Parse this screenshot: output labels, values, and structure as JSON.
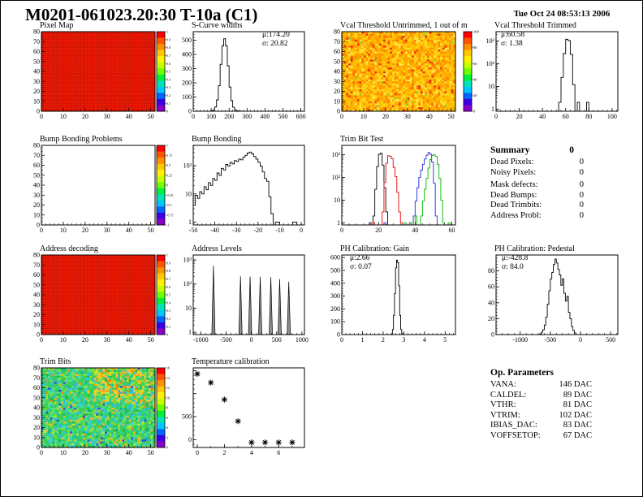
{
  "header": {
    "title": "M0201-061023.20:30 T-10a (C1)",
    "timestamp": "Tue Oct 24 08:53:13 2006"
  },
  "summary": {
    "title": "Summary",
    "total": "0",
    "rows": [
      {
        "label": "Dead Pixels:",
        "value": "0"
      },
      {
        "label": "Noisy Pixels:",
        "value": "0"
      },
      {
        "label": "Mask defects:",
        "value": "0"
      },
      {
        "label": "Dead Bumps:",
        "value": "0"
      },
      {
        "label": "Dead Trimbits:",
        "value": "0"
      },
      {
        "label": "Address Probl:",
        "value": "0"
      }
    ]
  },
  "op_parameters": {
    "title": "Op. Parameters",
    "rows": [
      {
        "label": "VANA:",
        "value": "146 DAC"
      },
      {
        "label": "CALDEL:",
        "value": "89 DAC"
      },
      {
        "label": "VTHR:",
        "value": "81 DAC"
      },
      {
        "label": "VTRIM:",
        "value": "102 DAC"
      },
      {
        "label": "IBIAS_DAC:",
        "value": "83 DAC"
      },
      {
        "label": "VOFFSETOP:",
        "value": "67 DAC"
      }
    ]
  },
  "colors": {
    "rainbow": [
      "#ff0000",
      "#ff5500",
      "#ff9100",
      "#ffc800",
      "#fff200",
      "#c8ff00",
      "#6eff00",
      "#00f23c",
      "#00e6b4",
      "#00c8ff",
      "#0064ff",
      "#3c00e6",
      "#8800cc"
    ],
    "map_red": "#f21905",
    "map_red_grid": "#a51404",
    "hist_line": "#000000"
  },
  "chart_data": [
    {
      "id": "pixel-map",
      "title": "Pixel Map",
      "type": "heatmap_uniform",
      "xlim": [
        0,
        52
      ],
      "ylim": [
        0,
        80
      ],
      "x_ticks": [
        0,
        10,
        20,
        30,
        40,
        50
      ],
      "y_ticks": [
        0,
        10,
        20,
        30,
        40,
        50,
        60,
        70,
        80
      ],
      "x_minor": 2,
      "y_minor": 2,
      "fill": "#f21905",
      "grid": "#a51404",
      "colorbar": {
        "x": 174,
        "labels": [
          "1",
          "0.9",
          "0.8",
          "0.7",
          "0.6",
          "0.5",
          "0.4",
          "0.3",
          "0.2",
          "0.1",
          "0"
        ],
        "fs": 4
      }
    },
    {
      "id": "s-curve-widths",
      "title": "S-Curve widths",
      "type": "hist",
      "xlim": [
        0,
        620
      ],
      "ylim": [
        0,
        560
      ],
      "x_ticks": [
        0,
        100,
        200,
        300,
        400,
        500,
        600
      ],
      "y_ticks": [
        0,
        100,
        200,
        300,
        400,
        500
      ],
      "x_minor": 20,
      "y_minor": 20,
      "x0": 80,
      "binw": 10,
      "counts": [
        0,
        1,
        3,
        10,
        30,
        80,
        180,
        330,
        460,
        510,
        460,
        320,
        170,
        75,
        28,
        10,
        4,
        2,
        1,
        0
      ],
      "stats": {
        "mu": "μ:174.20",
        "sigma": "σ: 20.82"
      }
    },
    {
      "id": "vcal-threshold-untrimmed",
      "title": "Vcal Threshold Untrimmed, 1 out of m",
      "type": "heatmap_noise",
      "xlim": [
        0,
        52
      ],
      "ylim": [
        0,
        80
      ],
      "x_ticks": [
        0,
        10,
        20,
        30,
        40,
        50
      ],
      "y_ticks": [
        0,
        10,
        20,
        30,
        40,
        50,
        60,
        70,
        80
      ],
      "x_minor": 2,
      "y_minor": 2,
      "seed": 42,
      "palette": [
        [
          "#ffc400",
          26
        ],
        [
          "#ffb000",
          22
        ],
        [
          "#ff9800",
          15
        ],
        [
          "#ffd91e",
          14
        ],
        [
          "#ff8400",
          9
        ],
        [
          "#ffe84d",
          6
        ],
        [
          "#ff6a00",
          4
        ],
        [
          "#e63600",
          2
        ],
        [
          "#8cc832",
          1
        ],
        [
          "#ff2000",
          1
        ]
      ],
      "colorbar": {
        "x": 177,
        "labels": [
          "100",
          "80",
          "60",
          "40",
          "20",
          "0"
        ],
        "fs": 4.5
      }
    },
    {
      "id": "vcal-threshold-trimmed",
      "title": "Vcal Threshold Trimmed",
      "type": "hist",
      "ylog": true,
      "xlim": [
        0,
        105
      ],
      "ylim": [
        0.8,
        2600
      ],
      "x_ticks": [
        0,
        20,
        40,
        60,
        80,
        100
      ],
      "x_minor": 4,
      "y_ticks": [
        1,
        10,
        100,
        1000
      ],
      "y_tick_labels": [
        "1",
        "10",
        "10²",
        "10³"
      ],
      "x0": 52,
      "binw": 2,
      "counts": [
        0,
        2,
        25,
        280,
        1200,
        1050,
        260,
        12,
        0,
        2,
        0,
        0,
        0,
        2,
        0
      ],
      "stats": {
        "mu": "μ:60.58",
        "sigma": "σ: 1.38"
      }
    },
    {
      "id": "bump-bonding-problems",
      "title": "Bump Bonding Problems",
      "type": "empty",
      "xlim": [
        0,
        52
      ],
      "ylim": [
        0,
        80
      ],
      "x_ticks": [
        0,
        10,
        20,
        30,
        40,
        50
      ],
      "y_ticks": [
        0,
        10,
        20,
        30,
        40,
        50,
        60,
        70,
        80
      ],
      "x_minor": 2,
      "y_minor": 2,
      "colorbar": {
        "x": 174,
        "labels": [
          "1",
          "0.75",
          "0.5",
          "0.25",
          "0",
          "-0.25",
          "-0.5",
          "-0.75",
          "-1"
        ],
        "fs": 4
      }
    },
    {
      "id": "bump-bonding",
      "title": "Bump Bonding",
      "type": "hist",
      "ylog": true,
      "xlim": [
        -50,
        1.5
      ],
      "ylim": [
        0.8,
        520
      ],
      "x_ticks": [
        -50,
        -40,
        -30,
        -20,
        -10,
        0
      ],
      "x_minor": 2,
      "y_ticks": [
        1,
        10,
        100
      ],
      "y_tick_labels": [
        "1",
        "10",
        "10²"
      ],
      "x0": -50,
      "binw": 1,
      "counts": [
        4,
        9,
        7,
        12,
        10,
        18,
        14,
        25,
        20,
        35,
        30,
        55,
        45,
        80,
        70,
        110,
        95,
        130,
        115,
        150,
        140,
        170,
        160,
        200,
        230,
        280,
        300,
        260,
        210,
        170,
        130,
        95,
        60,
        35,
        28,
        8,
        2,
        0,
        1,
        1,
        0,
        0,
        0,
        0,
        0,
        0,
        1,
        1,
        0,
        0
      ]
    },
    {
      "id": "trim-bit-test",
      "title": "Trim Bit Test",
      "type": "multi_hist",
      "ylog": true,
      "xlim": [
        0,
        62
      ],
      "ylim": [
        0.8,
        2600
      ],
      "x_ticks": [
        0,
        20,
        40,
        60
      ],
      "x_minor": 4,
      "y_ticks": [
        1,
        10,
        100,
        1000
      ],
      "y_tick_labels": [
        "1",
        "10",
        "10²",
        "10³"
      ],
      "binw": 1,
      "series": [
        {
          "color": "#000000",
          "x0": 14,
          "counts": [
            0,
            1,
            0,
            2,
            30,
            300,
            1050,
            1150,
            350,
            35,
            3,
            0
          ]
        },
        {
          "color": "#e60000",
          "x0": 17,
          "counts": [
            1,
            0,
            0,
            0,
            0,
            3,
            60,
            420,
            900,
            850,
            680,
            280,
            110,
            22,
            3,
            1,
            0
          ]
        },
        {
          "color": "#2828d2",
          "x0": 23,
          "counts": [
            1,
            0,
            0,
            0,
            0,
            0,
            0,
            0,
            0,
            0,
            0,
            0,
            0,
            0,
            1,
            0,
            2,
            9,
            35,
            100,
            210,
            380,
            650,
            950,
            1250,
            1050,
            480,
            55,
            2,
            0
          ]
        },
        {
          "color": "#00b400",
          "x0": 34,
          "counts": [
            1,
            0,
            0,
            1,
            0,
            0,
            2,
            0,
            0,
            2,
            9,
            30,
            90,
            260,
            620,
            920,
            1000,
            830,
            380,
            90,
            10,
            1,
            0,
            0,
            1,
            0
          ]
        }
      ]
    },
    {
      "id": "address-decoding",
      "title": "Address decoding",
      "type": "heatmap_uniform",
      "xlim": [
        0,
        52
      ],
      "ylim": [
        0,
        80
      ],
      "x_ticks": [
        0,
        10,
        20,
        30,
        40,
        50
      ],
      "y_ticks": [
        0,
        10,
        20,
        30,
        40,
        50,
        60,
        70,
        80
      ],
      "x_minor": 2,
      "y_minor": 2,
      "fill": "#f21905",
      "grid": "#a51404",
      "colorbar": {
        "x": 174,
        "labels": [
          "1",
          "0.9",
          "0.8",
          "0.7",
          "0.6",
          "0.5",
          "0.4",
          "0.3",
          "0.2",
          "0.1",
          "0"
        ],
        "fs": 4
      }
    },
    {
      "id": "address-levels",
      "title": "Address Levels",
      "type": "spikes",
      "ylog": true,
      "xlim": [
        -1150,
        1050
      ],
      "ylim": [
        0.8,
        1600
      ],
      "x_ticks": [
        -1000,
        -500,
        0,
        500,
        1000
      ],
      "x_minor": 100,
      "y_ticks": [
        1,
        10,
        100,
        1000
      ],
      "y_tick_labels": [
        "1",
        "10",
        "10²",
        "10³"
      ],
      "hw": 32,
      "spikes": [
        [
          -750,
          580
        ],
        [
          -215,
          210
        ],
        [
          -25,
          205
        ],
        [
          175,
          200
        ],
        [
          385,
          195
        ],
        [
          560,
          160
        ],
        [
          740,
          125
        ]
      ]
    },
    {
      "id": "ph-calibration-gain",
      "title": "PH Calibration: Gain",
      "type": "hist",
      "xlim": [
        0,
        5.5
      ],
      "ylim": [
        0,
        620
      ],
      "x_ticks": [
        0,
        1,
        2,
        3,
        4,
        5
      ],
      "x_minor": 0.2,
      "y_ticks": [
        0,
        100,
        200,
        300,
        400,
        500,
        600
      ],
      "y_minor": 20,
      "x0": 2.35,
      "binw": 0.05,
      "counts": [
        0,
        5,
        40,
        150,
        320,
        520,
        580,
        560,
        380,
        150,
        40,
        8,
        0
      ],
      "stats": {
        "mu": "μ:2.66",
        "sigma": "σ: 0.07"
      }
    },
    {
      "id": "ph-calibration-pedestal",
      "title": "PH Calibration: Pedestal",
      "type": "hist",
      "xlim": [
        -1400,
        620
      ],
      "ylim": [
        0,
        100
      ],
      "x_ticks": [
        -1000,
        -500,
        0,
        500
      ],
      "x_minor": 100,
      "y_ticks": [
        0,
        20,
        40,
        60,
        80
      ],
      "y_minor": 4,
      "x0": -700,
      "binw": 25,
      "counts": [
        0,
        1,
        3,
        6,
        12,
        22,
        38,
        55,
        70,
        78,
        88,
        95,
        90,
        82,
        75,
        62,
        70,
        52,
        42,
        48,
        28,
        20,
        10,
        5,
        2,
        0
      ],
      "stats": {
        "mu": "μ:-428.8",
        "sigma": "σ: 84.0"
      }
    },
    {
      "id": "trim-bits",
      "title": "Trim Bits",
      "type": "heatmap_noise",
      "xlim": [
        0,
        52
      ],
      "ylim": [
        0,
        80
      ],
      "x_ticks": [
        0,
        10,
        20,
        30,
        40,
        50
      ],
      "y_ticks": [
        0,
        10,
        20,
        30,
        40,
        50,
        60,
        70,
        80
      ],
      "x_minor": 2,
      "y_minor": 2,
      "seed": 7,
      "palette": [
        [
          "#3cd24b",
          22
        ],
        [
          "#2fc878",
          15
        ],
        [
          "#55e37a",
          13
        ],
        [
          "#2fd2aa",
          12
        ],
        [
          "#37c8dc",
          8
        ],
        [
          "#96dc32",
          9
        ],
        [
          "#28b4f0",
          4
        ],
        [
          "#ffb428",
          4
        ],
        [
          "#ff8214",
          1
        ],
        [
          "#3246e6",
          2
        ],
        [
          "#c8e632",
          3
        ],
        [
          "#19b45a",
          7
        ]
      ],
      "hot": {
        "ix": 24,
        "iy": 17,
        "p": 0.38,
        "palette": [
          [
            "#ffc828",
            5
          ],
          [
            "#ffa014",
            4
          ],
          [
            "#e6dc28",
            3
          ],
          [
            "#ff7d00",
            2
          ],
          [
            "#96dc32",
            3
          ]
        ]
      },
      "colorbar": {
        "x": 174,
        "labels": [
          "16",
          "14",
          "12",
          "10",
          "8",
          "6",
          "4",
          "2",
          "0"
        ],
        "fs": 4
      }
    },
    {
      "id": "temperature-calibration",
      "title": "Temperature calibration",
      "type": "scatter",
      "xlim": [
        -0.3,
        7.9
      ],
      "ylim": [
        -170,
        1560
      ],
      "x_ticks": [
        0,
        2,
        4,
        6
      ],
      "x_minor": 1,
      "y_ticks": [
        0,
        500,
        1000,
        1500
      ],
      "y_tick_labels": [
        "0",
        "500",
        "",
        ""
      ],
      "y_minor": 100,
      "points": [
        [
          0,
          1430
        ],
        [
          1,
          1240
        ],
        [
          2,
          870
        ],
        [
          3,
          400
        ],
        [
          4,
          -60
        ],
        [
          5,
          -60
        ],
        [
          6,
          -60
        ],
        [
          7,
          -60
        ]
      ]
    }
  ]
}
